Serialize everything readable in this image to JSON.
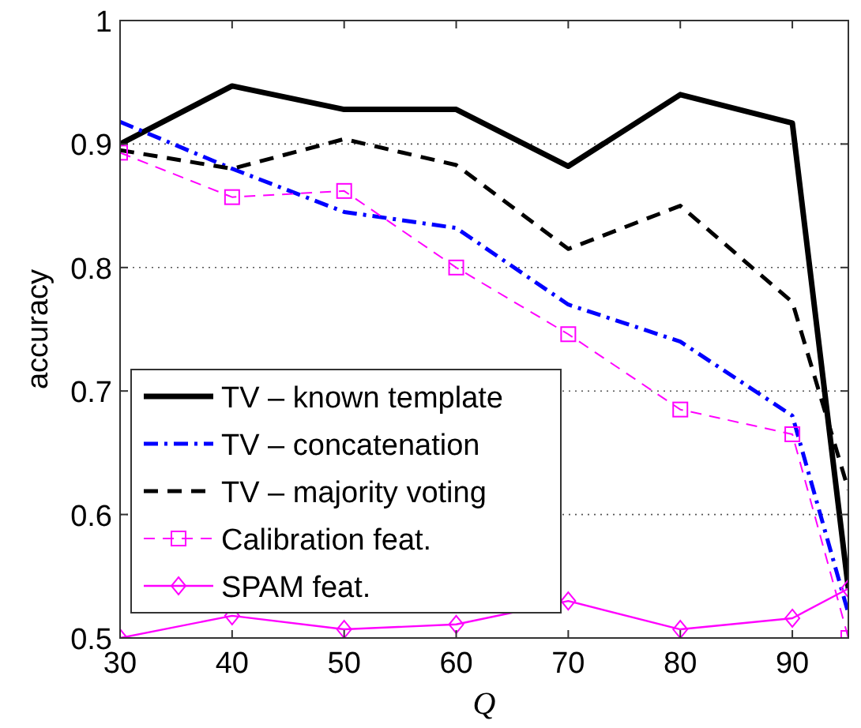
{
  "chart_data": {
    "type": "line",
    "xlabel": "Q",
    "ylabel": "accuracy",
    "x": [
      30,
      40,
      50,
      60,
      70,
      80,
      90,
      95
    ],
    "xlim": [
      30,
      95
    ],
    "xticks": [
      30,
      40,
      50,
      60,
      70,
      80,
      90
    ],
    "ylim": [
      0.5,
      1
    ],
    "yticks": [
      0.5,
      0.6,
      0.7,
      0.8,
      0.9,
      1
    ],
    "grid": "y",
    "legend": "bottom left",
    "series": [
      {
        "name": "TV – known template",
        "color": "#000000",
        "line_style": "solid",
        "marker": "none",
        "values": [
          0.9,
          0.947,
          0.928,
          0.928,
          0.882,
          0.94,
          0.917,
          0.54
        ]
      },
      {
        "name": "TV – concatenation",
        "color": "#0000ff",
        "line_style": "dashdot",
        "marker": "none",
        "values": [
          0.918,
          0.88,
          0.845,
          0.832,
          0.77,
          0.74,
          0.68,
          0.52
        ]
      },
      {
        "name": "TV – majority voting",
        "color": "#000000",
        "line_style": "dashed",
        "marker": "none",
        "values": [
          0.895,
          0.88,
          0.904,
          0.883,
          0.815,
          0.85,
          0.772,
          0.62
        ]
      },
      {
        "name": "Calibration feat.",
        "color": "#ff00ff",
        "line_style": "dashed",
        "marker": "square",
        "values": [
          0.893,
          0.857,
          0.862,
          0.8,
          0.746,
          0.685,
          0.665,
          0.5
        ]
      },
      {
        "name": "SPAM feat.",
        "color": "#ff00ff",
        "line_style": "solid",
        "marker": "diamond",
        "values": [
          0.5,
          0.518,
          0.507,
          0.511,
          0.53,
          0.507,
          0.516,
          0.54
        ]
      }
    ]
  }
}
